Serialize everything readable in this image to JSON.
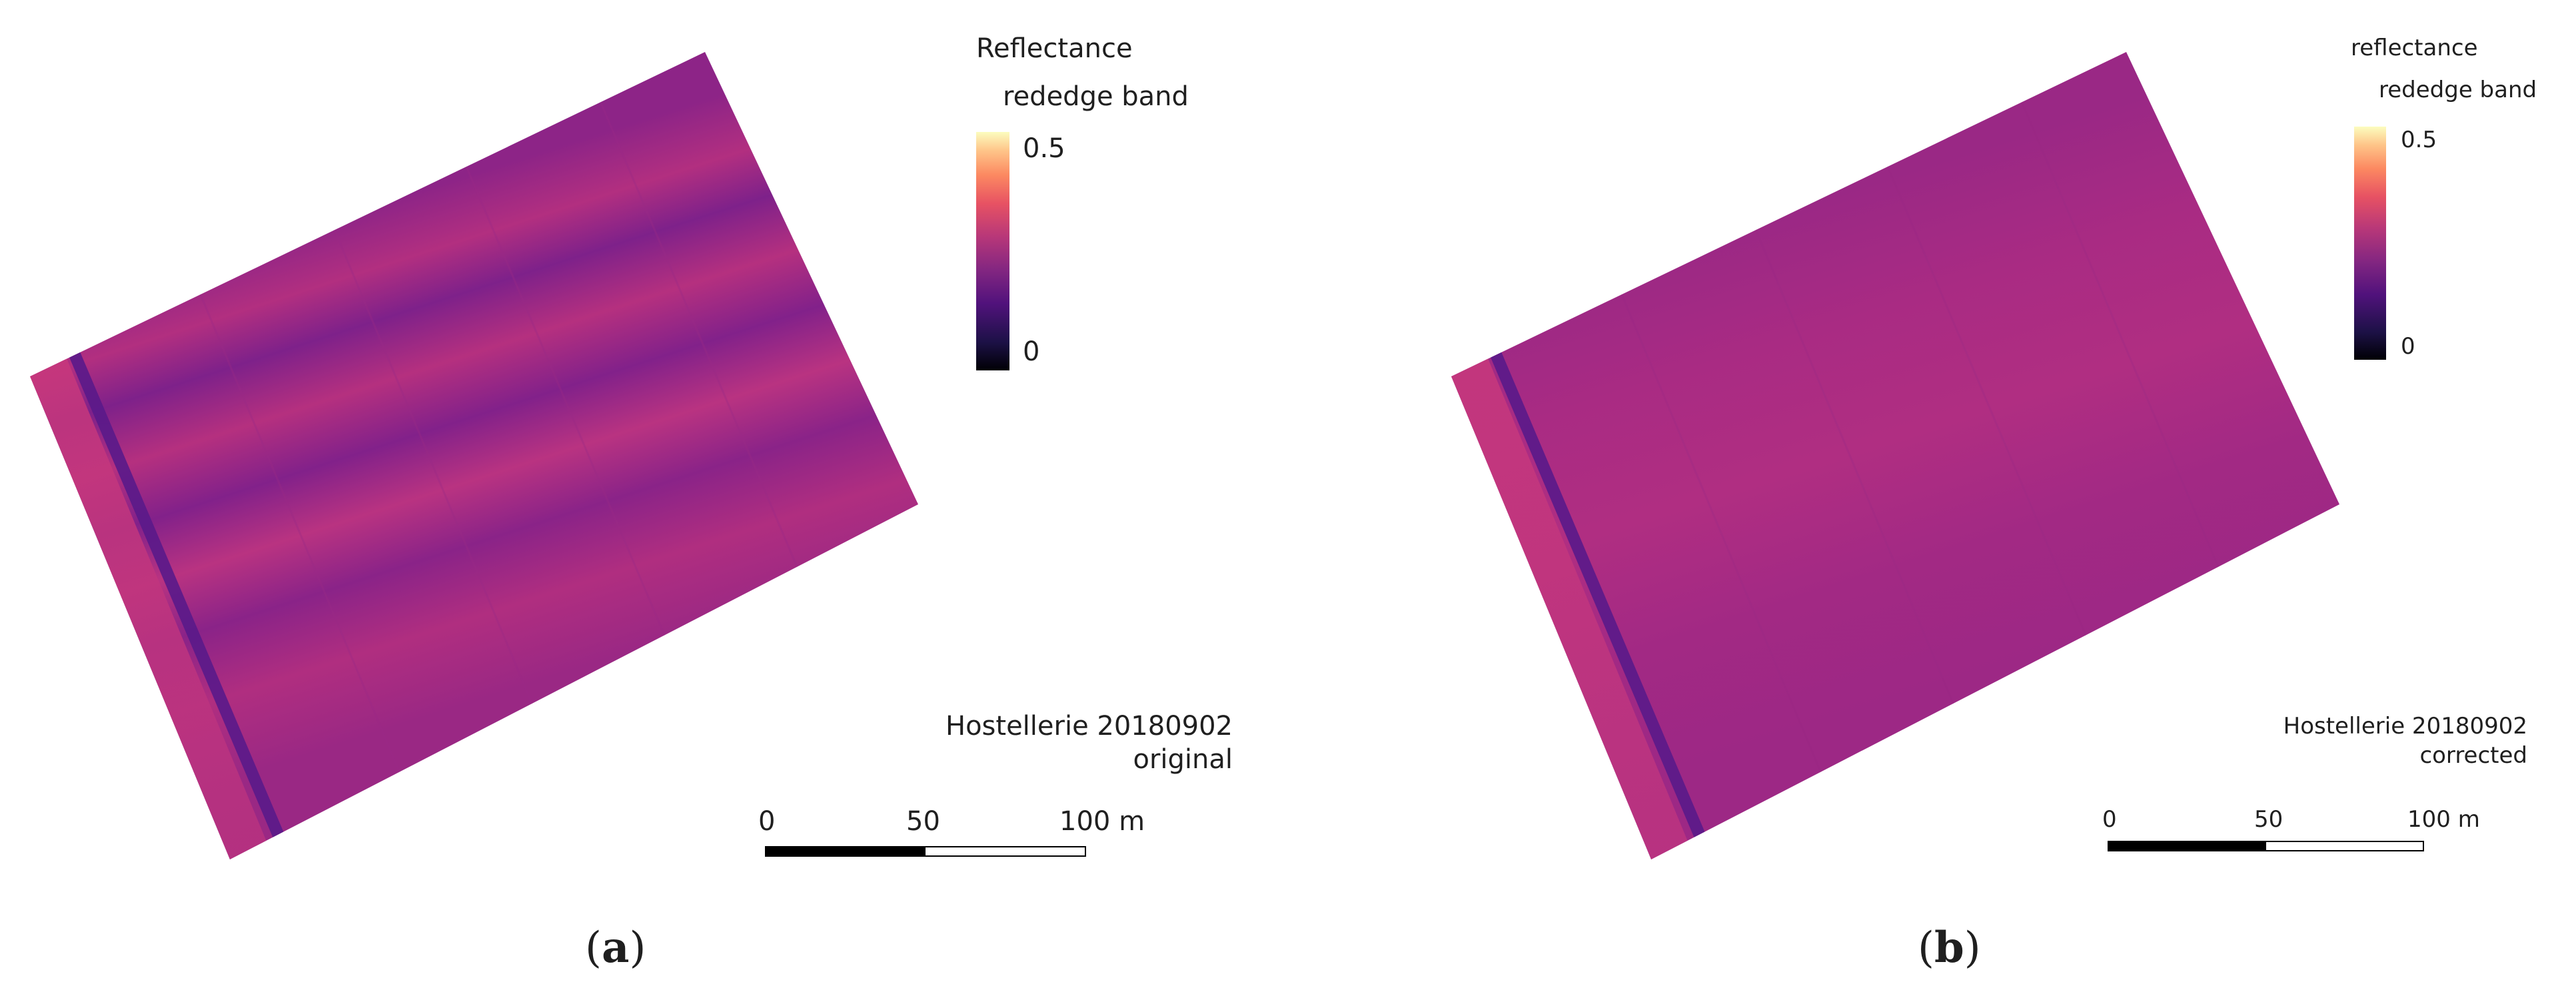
{
  "panels": [
    {
      "legend_title": "Reflectance",
      "legend_subtitle": "rededge band",
      "tick_max": "0.5",
      "tick_min": "0",
      "site": "Hostellerie 20180902",
      "version": "original",
      "scale_ticks": [
        "0",
        "50",
        "100 m"
      ],
      "panel_letter": "a",
      "open_paren": "(",
      "close_paren": ")"
    },
    {
      "legend_title": "reflectance",
      "legend_subtitle": "rededge band",
      "tick_max": "0.5",
      "tick_min": "0",
      "site": "Hostellerie 20180902",
      "version": "corrected",
      "scale_ticks": [
        "0",
        "50",
        "100 m"
      ],
      "panel_letter": "b",
      "open_paren": "(",
      "close_paren": ")"
    }
  ],
  "colors": {
    "field_base": "#a8237f",
    "field_dark": "#6a1a85",
    "field_light": "#d23f7a",
    "colormap": "magma"
  }
}
